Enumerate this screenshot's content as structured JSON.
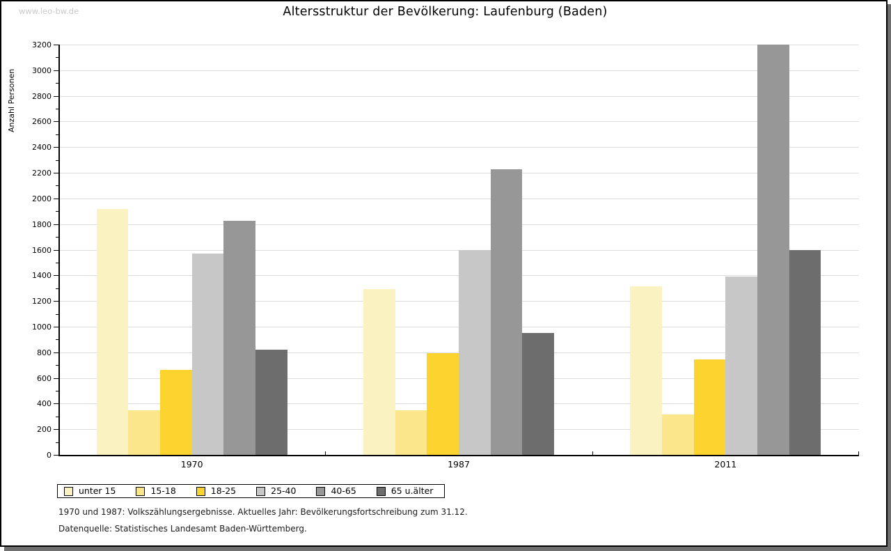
{
  "page": {
    "watermark": "www.leo-bw.de",
    "footnote1": "1970 und 1987: Volkszählungsergebnisse. Aktuelles Jahr: Bevölkerungsfortschreibung zum 31.12.",
    "footnote2": "Datenquelle: Statistisches Landesamt Baden-Württemberg."
  },
  "chart_data": {
    "type": "bar",
    "title": "Altersstruktur der Bevölkerung: Laufenburg (Baden)",
    "xlabel": "",
    "ylabel": "Anzahl Personen",
    "categories": [
      "1970",
      "1987",
      "2011"
    ],
    "series": [
      {
        "name": "unter 15",
        "color": "#fbf2c2",
        "values": [
          1920,
          1295,
          1315
        ]
      },
      {
        "name": "15-18",
        "color": "#fce68b",
        "values": [
          350,
          350,
          315
        ]
      },
      {
        "name": "18-25",
        "color": "#fdd330",
        "values": [
          665,
          795,
          745
        ]
      },
      {
        "name": "25-40",
        "color": "#c7c7c7",
        "values": [
          1570,
          1600,
          1390
        ]
      },
      {
        "name": "40-65",
        "color": "#979797",
        "values": [
          1825,
          2230,
          3200
        ]
      },
      {
        "name": "65 u.älter",
        "color": "#6d6d6d",
        "values": [
          820,
          950,
          1600
        ]
      }
    ],
    "ylim": [
      0,
      3200
    ],
    "ytick_step": 200,
    "yticks": [
      0,
      200,
      400,
      600,
      800,
      1000,
      1200,
      1400,
      1600,
      1800,
      2000,
      2200,
      2400,
      2600,
      2800,
      3000,
      3200
    ],
    "minor_tick_step": 100,
    "grid": true,
    "legend_position": "bottom"
  }
}
